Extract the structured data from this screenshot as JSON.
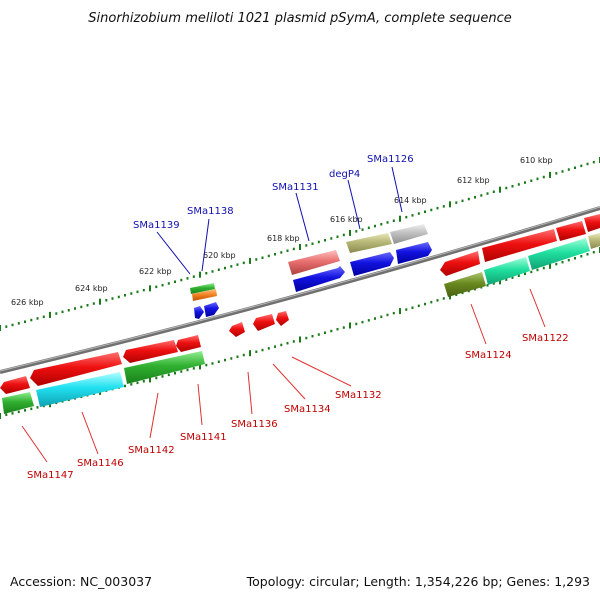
{
  "title": "Sinorhizobium meliloti 1021 plasmid pSymA, complete sequence",
  "footer": {
    "accession": "Accession: NC_003037",
    "topology": "Topology: circular; Length: 1,354,226 bp; Genes: 1,293"
  },
  "ticks": [
    "610 kbp",
    "612 kbp",
    "614 kbp",
    "616 kbp",
    "618 kbp",
    "620 kbp",
    "622 kbp",
    "624 kbp",
    "626 kbp"
  ],
  "upper_labels": [
    "SMa1126",
    "degP4",
    "SMa1131",
    "SMa1138",
    "SMa1139"
  ],
  "lower_labels": [
    "SMa1122",
    "SMa1124",
    "SMa1132",
    "SMa1134",
    "SMa1136",
    "SMa1141",
    "SMa1142",
    "SMa1146",
    "SMa1147"
  ],
  "colors": {
    "red": "#e01010",
    "blue": "#1010d0",
    "green": "#30b030",
    "cyan": "#20d0e0",
    "teal": "#20d890",
    "olive": "#6a8a20",
    "khaki": "#b0b070",
    "pink": "#e07070",
    "grey": "#b0b0b0",
    "orange": "#f08020",
    "backbone": "#707070",
    "tick": "#1a7a1a"
  }
}
